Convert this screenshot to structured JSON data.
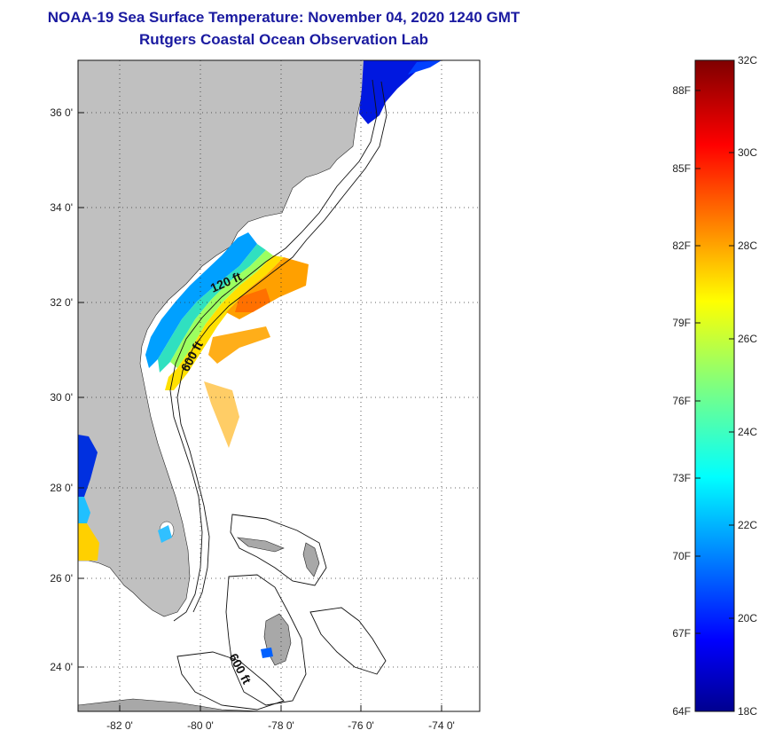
{
  "header": {
    "title": "NOAA-19 Sea Surface Temperature:  November 04, 2020 1240 GMT",
    "subtitle": "Rutgers Coastal Ocean Observation Lab"
  },
  "map": {
    "lat_labels": [
      "36 0'",
      "34 0'",
      "32 0'",
      "30 0'",
      "28 0'",
      "26 0'",
      "24 0'"
    ],
    "lon_labels": [
      "-82 0'",
      "-80 0'",
      "-78 0'",
      "-76 0'",
      "-74 0'"
    ],
    "contour_labels": [
      "120 ft",
      "600 ft",
      "600 ft"
    ],
    "land_color": "#c0c0c0",
    "ocean_color": "#ffffff"
  },
  "colorbar": {
    "f_labels": [
      "88F",
      "85F",
      "82F",
      "79F",
      "76F",
      "73F",
      "70F",
      "67F",
      "64F"
    ],
    "c_labels": [
      "32C",
      "30C",
      "28C",
      "26C",
      "24C",
      "22C",
      "20C",
      "18C"
    ],
    "range_c": [
      18,
      32
    ],
    "range_f": [
      64,
      89.6
    ],
    "colormap": "jet"
  }
}
